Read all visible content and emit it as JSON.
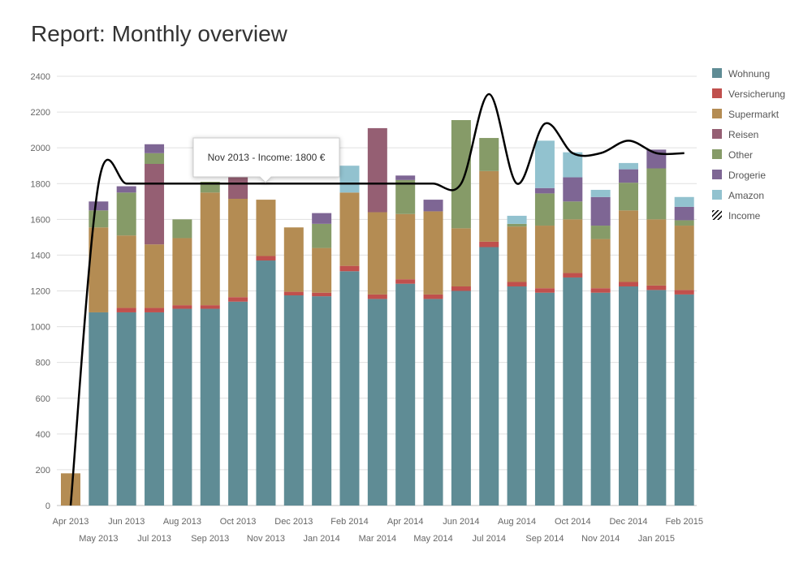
{
  "page": {
    "title": "Report: Monthly overview"
  },
  "chart_data": {
    "type": "bar",
    "stacked": true,
    "title": "Report: Monthly overview",
    "xlabel": "",
    "ylabel": "",
    "ylim": [
      0,
      2400
    ],
    "yticks": [
      0,
      200,
      400,
      600,
      800,
      1000,
      1200,
      1400,
      1600,
      1800,
      2000,
      2200,
      2400
    ],
    "grid": true,
    "legend_position": "right",
    "categories": [
      "Apr 2013",
      "May 2013",
      "Jun 2013",
      "Jul 2013",
      "Aug 2013",
      "Sep 2013",
      "Oct 2013",
      "Nov 2013",
      "Dec 2013",
      "Jan 2014",
      "Feb 2014",
      "Mar 2014",
      "Apr 2014",
      "May 2014",
      "Jun 2014",
      "Jul 2014",
      "Aug 2014",
      "Sep 2014",
      "Oct 2014",
      "Nov 2014",
      "Dec 2014",
      "Jan 2015",
      "Feb 2015"
    ],
    "series": [
      {
        "name": "Wohnung",
        "color": "#5f8c95",
        "values": [
          0,
          1080,
          1080,
          1080,
          1100,
          1100,
          1140,
          1370,
          1175,
          1170,
          1310,
          1155,
          1240,
          1155,
          1200,
          1445,
          1225,
          1190,
          1275,
          1190,
          1225,
          1205,
          1180
        ]
      },
      {
        "name": "Versicherung",
        "color": "#c0504d",
        "values": [
          0,
          0,
          25,
          25,
          20,
          20,
          25,
          25,
          20,
          20,
          30,
          25,
          25,
          25,
          25,
          30,
          25,
          25,
          25,
          25,
          25,
          25,
          25
        ]
      },
      {
        "name": "Supermarkt",
        "color": "#b48c53",
        "values": [
          180,
          475,
          405,
          355,
          375,
          630,
          550,
          315,
          360,
          250,
          410,
          460,
          365,
          465,
          325,
          395,
          310,
          350,
          300,
          275,
          400,
          370,
          360
        ]
      },
      {
        "name": "Reisen",
        "color": "#955f73",
        "values": [
          0,
          0,
          0,
          450,
          0,
          0,
          130,
          0,
          0,
          0,
          0,
          470,
          0,
          0,
          0,
          0,
          0,
          0,
          0,
          0,
          0,
          0,
          0
        ]
      },
      {
        "name": "Other",
        "color": "#869b68",
        "values": [
          0,
          95,
          240,
          60,
          105,
          60,
          0,
          0,
          0,
          135,
          0,
          0,
          190,
          0,
          605,
          185,
          15,
          180,
          100,
          75,
          155,
          285,
          30
        ]
      },
      {
        "name": "Drogerie",
        "color": "#7e6694",
        "values": [
          0,
          50,
          35,
          50,
          0,
          0,
          0,
          0,
          0,
          60,
          0,
          0,
          25,
          65,
          0,
          0,
          0,
          30,
          135,
          160,
          75,
          105,
          75
        ]
      },
      {
        "name": "Amazon",
        "color": "#92c2cf",
        "values": [
          0,
          0,
          0,
          0,
          0,
          0,
          0,
          0,
          0,
          0,
          150,
          0,
          0,
          0,
          0,
          0,
          45,
          265,
          140,
          40,
          35,
          0,
          55
        ]
      }
    ],
    "line": {
      "name": "Income",
      "color": "#000000",
      "values": [
        0,
        1800,
        1800,
        1800,
        1800,
        1800,
        1800,
        1800,
        1800,
        1800,
        1800,
        1800,
        1800,
        1800,
        1800,
        2300,
        1800,
        2135,
        1970,
        1970,
        2040,
        1970,
        1970
      ]
    },
    "tooltip": {
      "text": "Nov 2013 - Income: 1800 €"
    }
  }
}
